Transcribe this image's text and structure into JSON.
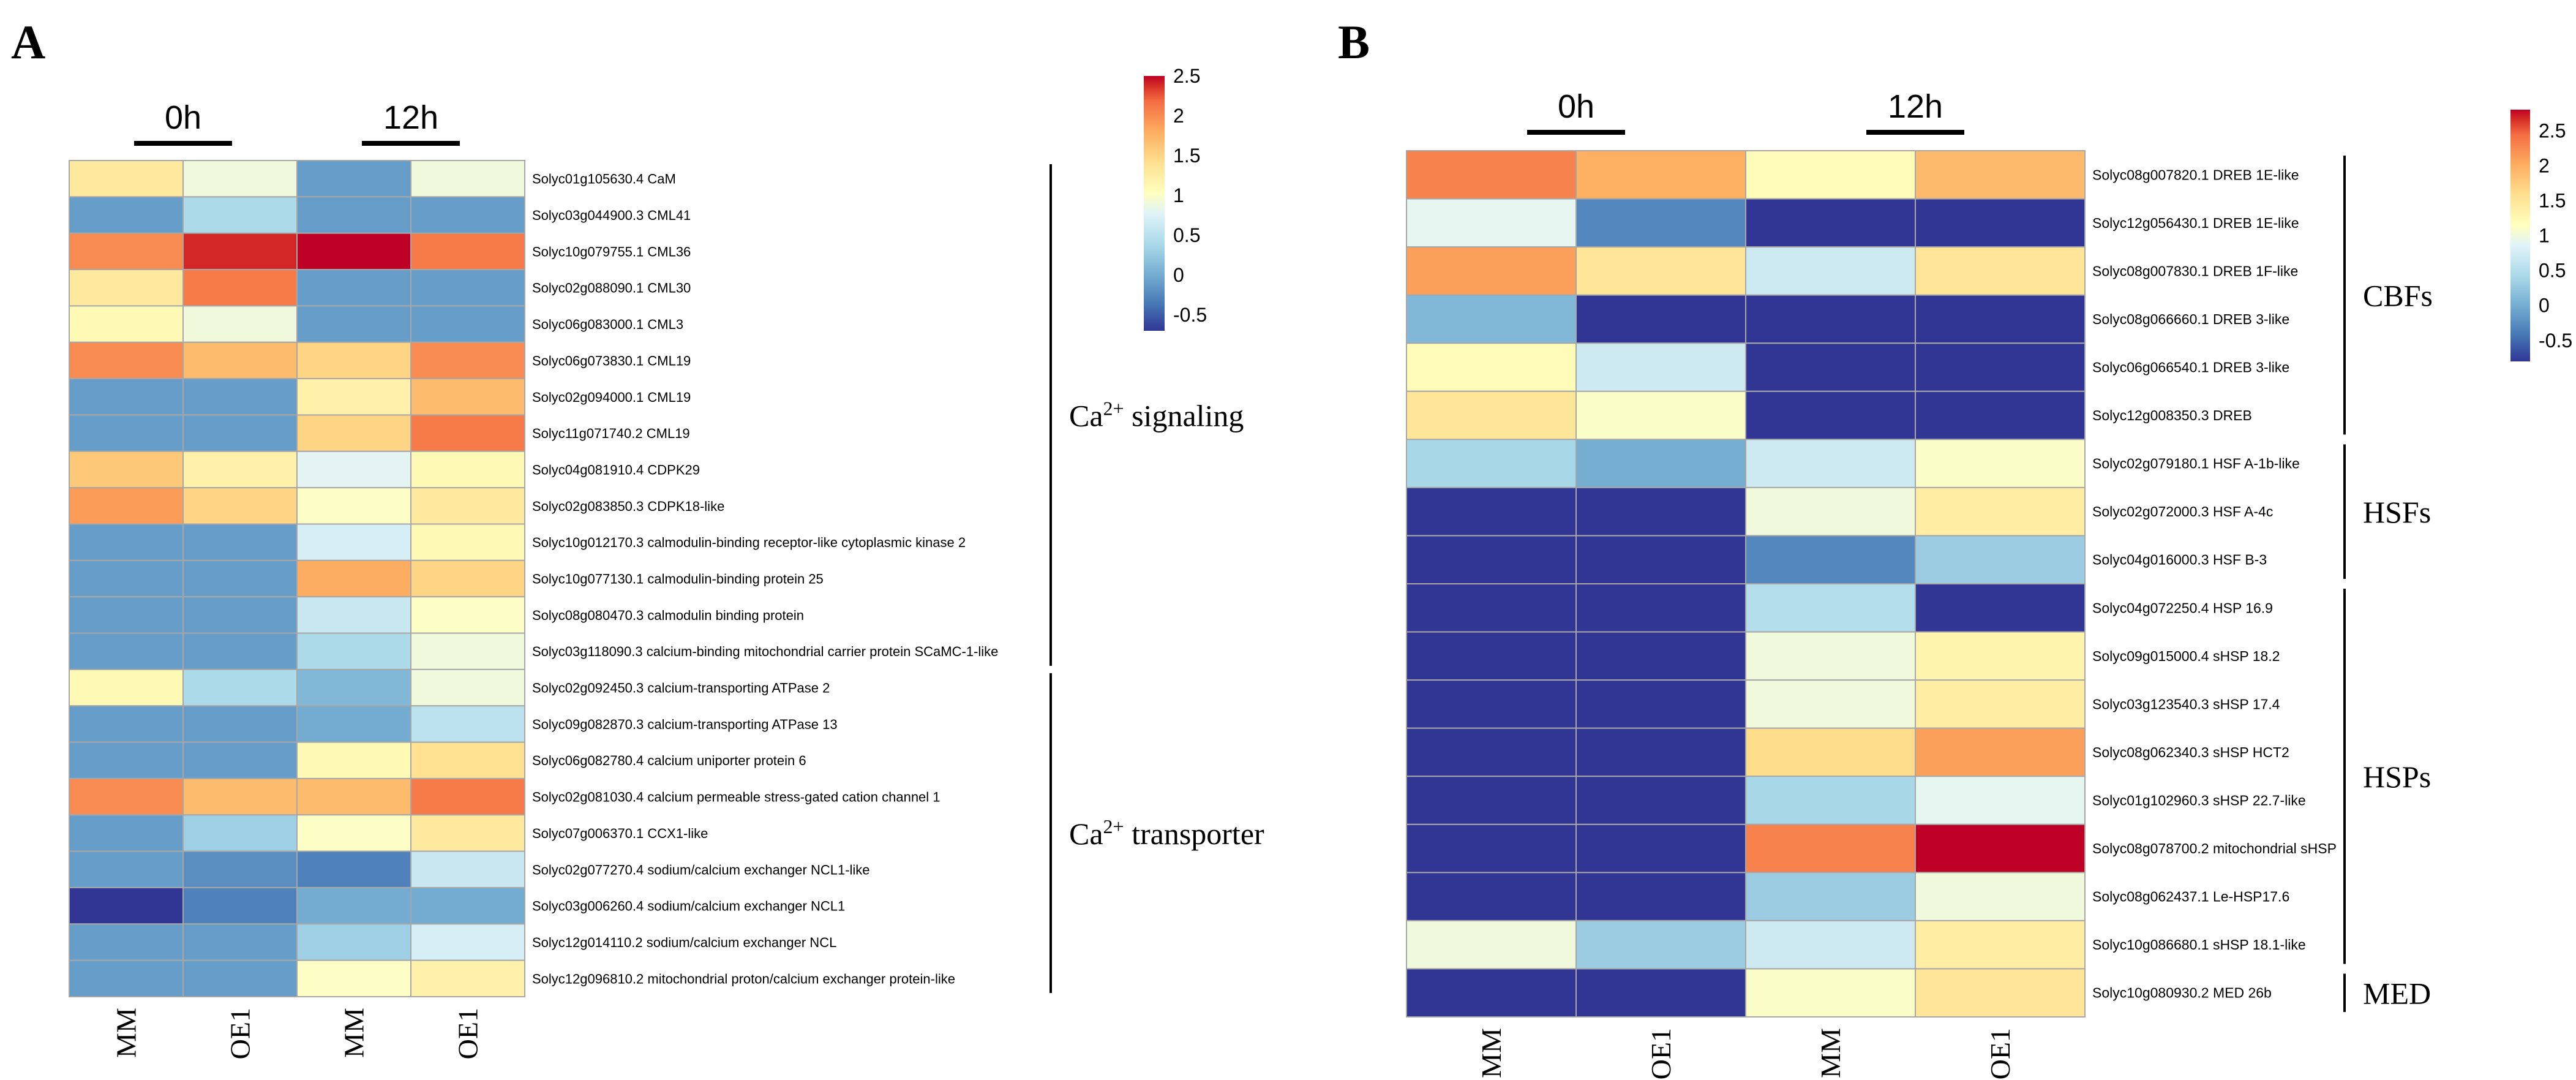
{
  "chart_data": [
    {
      "type": "heatmap",
      "panel_label": "A",
      "columns": [
        "MM",
        "OE1",
        "MM",
        "OE1"
      ],
      "column_groups": [
        {
          "label": "0h",
          "columns": [
            0,
            1
          ]
        },
        {
          "label": "12h",
          "columns": [
            2,
            3
          ]
        }
      ],
      "rows": [
        "Solyc01g105630.4 CaM",
        "Solyc03g044900.3 CML41",
        "Solyc10g079755.1 CML36",
        "Solyc02g088090.1 CML30",
        "Solyc06g083000.1 CML3",
        "Solyc06g073830.1 CML19",
        "Solyc02g094000.1 CML19",
        "Solyc11g071740.2 CML19",
        "Solyc04g081910.4 CDPK29",
        "Solyc02g083850.3 CDPK18-like",
        "Solyc10g012170.3 calmodulin-binding receptor-like cytoplasmic kinase 2",
        "Solyc10g077130.1 calmodulin-binding protein 25",
        "Solyc08g080470.3 calmodulin binding protein",
        "Solyc03g118090.3 calcium-binding mitochondrial carrier protein SCaMC-1-like",
        "Solyc02g092450.3 calcium-transporting ATPase 2",
        "Solyc09g082870.3 calcium-transporting ATPase 13",
        "Solyc06g082780.4 calcium uniporter protein 6",
        "Solyc02g081030.4 calcium permeable stress-gated cation channel 1",
        "Solyc07g006370.1 CCX1-like",
        "Solyc02g077270.4 sodium/calcium exchanger NCL1-like",
        "Solyc03g006260.4 sodium/calcium exchanger NCL1",
        "Solyc12g014110.2 sodium/calcium exchanger NCL",
        "Solyc12g096810.2 mitochondrial proton/calcium exchanger protein-like"
      ],
      "values": [
        [
          1.3,
          0.9,
          -0.1,
          0.9
        ],
        [
          -0.1,
          0.4,
          -0.1,
          -0.1
        ],
        [
          2.0,
          2.4,
          2.5,
          2.1
        ],
        [
          1.3,
          2.1,
          -0.1,
          -0.1
        ],
        [
          1.1,
          0.9,
          -0.1,
          -0.1
        ],
        [
          2.0,
          1.7,
          1.5,
          2.0
        ],
        [
          -0.1,
          -0.1,
          1.2,
          1.7
        ],
        [
          -0.1,
          -0.1,
          1.5,
          2.1
        ],
        [
          1.6,
          1.2,
          0.8,
          1.1
        ],
        [
          1.9,
          1.5,
          1.0,
          1.3
        ],
        [
          -0.1,
          -0.1,
          0.7,
          1.1
        ],
        [
          -0.1,
          -0.1,
          1.8,
          1.5
        ],
        [
          -0.1,
          -0.1,
          0.6,
          1.0
        ],
        [
          -0.1,
          -0.1,
          0.4,
          0.9
        ],
        [
          1.1,
          0.4,
          0.1,
          0.9
        ],
        [
          -0.1,
          -0.1,
          0.0,
          0.5
        ],
        [
          -0.1,
          -0.1,
          1.1,
          1.4
        ],
        [
          2.0,
          1.7,
          1.7,
          2.1
        ],
        [
          -0.1,
          0.3,
          1.0,
          1.3
        ],
        [
          -0.1,
          -0.2,
          -0.3,
          0.6
        ],
        [
          -0.7,
          -0.3,
          0.0,
          0.0
        ],
        [
          -0.1,
          -0.1,
          0.3,
          0.7
        ],
        [
          -0.1,
          -0.1,
          1.0,
          1.2
        ]
      ],
      "row_groups": [
        {
          "label": "Ca",
          "superscript": "2+",
          "suffix": " signaling",
          "rows": [
            0,
            13
          ]
        },
        {
          "label": "Ca",
          "superscript": "2+",
          "suffix": " transporter",
          "rows": [
            14,
            22
          ]
        }
      ],
      "colorbar": {
        "min": -0.7,
        "max": 2.5,
        "ticks": [
          2.5,
          2,
          1.5,
          1,
          0.5,
          0,
          -0.5
        ],
        "tick_labels": [
          "2.5",
          "2",
          "1.5",
          "1",
          "0.5",
          "0",
          "-0.5"
        ]
      }
    },
    {
      "type": "heatmap",
      "panel_label": "B",
      "columns": [
        "MM",
        "OE1",
        "MM",
        "OE1"
      ],
      "column_groups": [
        {
          "label": "0h",
          "columns": [
            0,
            1
          ]
        },
        {
          "label": "12h",
          "columns": [
            2,
            3
          ]
        }
      ],
      "rows": [
        "Solyc08g007820.1 DREB 1E-like",
        "Solyc12g056430.1 DREB 1E-like",
        "Solyc08g007830.1 DREB 1F-like",
        "Solyc08g066660.1 DREB 3-like",
        "Solyc06g066540.1 DREB 3-like",
        "Solyc12g008350.3 DREB",
        "Solyc02g079180.1 HSF A-1b-like",
        "Solyc02g072000.3 HSF A-4c",
        "Solyc04g016000.3 HSF B-3",
        "Solyc04g072250.4 HSP 16.9",
        "Solyc09g015000.4 sHSP 18.2",
        "Solyc03g123540.3 sHSP 17.4",
        "Solyc08g062340.3 sHSP HCT2",
        "Solyc01g102960.3 sHSP 22.7-like",
        "Solyc08g078700.2 mitochondrial sHSP",
        "Solyc08g062437.1 Le-HSP17.6",
        "Solyc10g086680.1 sHSP 18.1-like",
        "Solyc10g080930.2 MED 26b"
      ],
      "values": [
        [
          2.3,
          2.0,
          1.2,
          1.9
        ],
        [
          0.9,
          -0.3,
          -0.8,
          -0.8
        ],
        [
          2.1,
          1.5,
          0.7,
          1.5
        ],
        [
          0.1,
          -0.8,
          -0.8,
          -0.8
        ],
        [
          1.2,
          0.7,
          -0.8,
          -0.8
        ],
        [
          1.5,
          1.1,
          -0.8,
          -0.8
        ],
        [
          0.4,
          0.0,
          0.7,
          1.1
        ],
        [
          -0.8,
          -0.8,
          1.0,
          1.4
        ],
        [
          -0.8,
          -0.8,
          -0.3,
          0.3
        ],
        [
          -0.8,
          -0.8,
          0.5,
          -0.8
        ],
        [
          -0.8,
          -0.8,
          1.0,
          1.3
        ],
        [
          -0.8,
          -0.8,
          1.0,
          1.4
        ],
        [
          -0.8,
          -0.8,
          1.6,
          2.1
        ],
        [
          -0.8,
          -0.8,
          0.4,
          0.9
        ],
        [
          -0.8,
          -0.8,
          2.3,
          2.8
        ],
        [
          -0.8,
          -0.8,
          0.3,
          1.0
        ],
        [
          1.0,
          0.3,
          0.7,
          1.4
        ],
        [
          -0.8,
          -0.8,
          1.1,
          1.5
        ]
      ],
      "row_groups": [
        {
          "label": "CBFs",
          "rows": [
            0,
            5
          ]
        },
        {
          "label": "HSFs",
          "rows": [
            6,
            8
          ]
        },
        {
          "label": "HSPs",
          "rows": [
            9,
            16
          ]
        },
        {
          "label": "MED",
          "rows": [
            17,
            17
          ]
        }
      ],
      "colorbar": {
        "min": -0.8,
        "max": 2.8,
        "ticks": [
          2.5,
          2,
          1.5,
          1,
          0.5,
          0,
          -0.5
        ],
        "tick_labels": [
          "2.5",
          "2",
          "1.5",
          "1",
          "0.5",
          "0",
          "-0.5"
        ]
      }
    }
  ]
}
